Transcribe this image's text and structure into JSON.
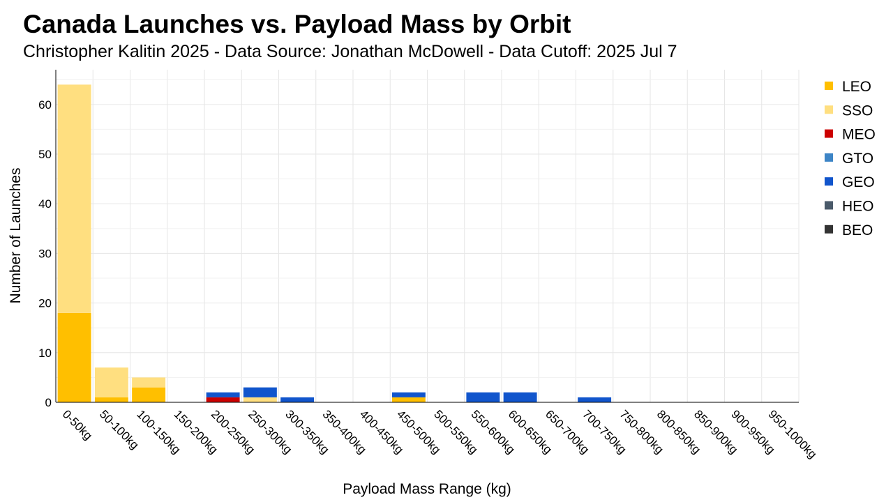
{
  "chart_data": {
    "type": "bar",
    "stacked": true,
    "title": "Canada Launches vs. Payload Mass by Orbit",
    "subtitle": "Christopher Kalitin 2025 - Data Source: Jonathan McDowell - Data Cutoff: 2025 Jul 7",
    "xlabel": "Payload Mass Range (kg)",
    "ylabel": "Number of Launches",
    "ylim": [
      0,
      67
    ],
    "yticks": [
      0,
      10,
      20,
      30,
      40,
      50,
      60
    ],
    "grid": true,
    "legend_position": "right",
    "categories": [
      "0-50kg",
      "50-100kg",
      "100-150kg",
      "150-200kg",
      "200-250kg",
      "250-300kg",
      "300-350kg",
      "350-400kg",
      "400-450kg",
      "450-500kg",
      "500-550kg",
      "550-600kg",
      "600-650kg",
      "650-700kg",
      "700-750kg",
      "750-800kg",
      "800-850kg",
      "850-900kg",
      "900-950kg",
      "950-1000kg"
    ],
    "series": [
      {
        "name": "LEO",
        "color": "#FFBF00",
        "values": [
          18,
          1,
          3,
          0,
          0,
          0,
          0,
          0,
          0,
          1,
          0,
          0,
          0,
          0,
          0,
          0,
          0,
          0,
          0,
          0
        ]
      },
      {
        "name": "SSO",
        "color": "#FFDF80",
        "values": [
          46,
          6,
          2,
          0,
          0,
          1,
          0,
          0,
          0,
          0,
          0,
          0,
          0,
          0,
          0,
          0,
          0,
          0,
          0,
          0
        ]
      },
      {
        "name": "MEO",
        "color": "#CC0000",
        "values": [
          0,
          0,
          0,
          0,
          1,
          0,
          0,
          0,
          0,
          0,
          0,
          0,
          0,
          0,
          0,
          0,
          0,
          0,
          0,
          0
        ]
      },
      {
        "name": "GTO",
        "color": "#3D85C6",
        "values": [
          0,
          0,
          0,
          0,
          0,
          0,
          0,
          0,
          0,
          0,
          0,
          0,
          0,
          0,
          0,
          0,
          0,
          0,
          0,
          0
        ]
      },
      {
        "name": "GEO",
        "color": "#1155CC",
        "values": [
          0,
          0,
          0,
          0,
          1,
          2,
          1,
          0,
          0,
          1,
          0,
          2,
          2,
          0,
          1,
          0,
          0,
          0,
          0,
          0
        ]
      },
      {
        "name": "HEO",
        "color": "#4A5A6A",
        "values": [
          0,
          0,
          0,
          0,
          0,
          0,
          0,
          0,
          0,
          0,
          0,
          0,
          0,
          0,
          0,
          0,
          0,
          0,
          0,
          0
        ]
      },
      {
        "name": "BEO",
        "color": "#333333",
        "values": [
          0,
          0,
          0,
          0,
          0,
          0,
          0,
          0,
          0,
          0,
          0,
          0,
          0,
          0,
          0,
          0,
          0,
          0,
          0,
          0
        ]
      }
    ]
  }
}
